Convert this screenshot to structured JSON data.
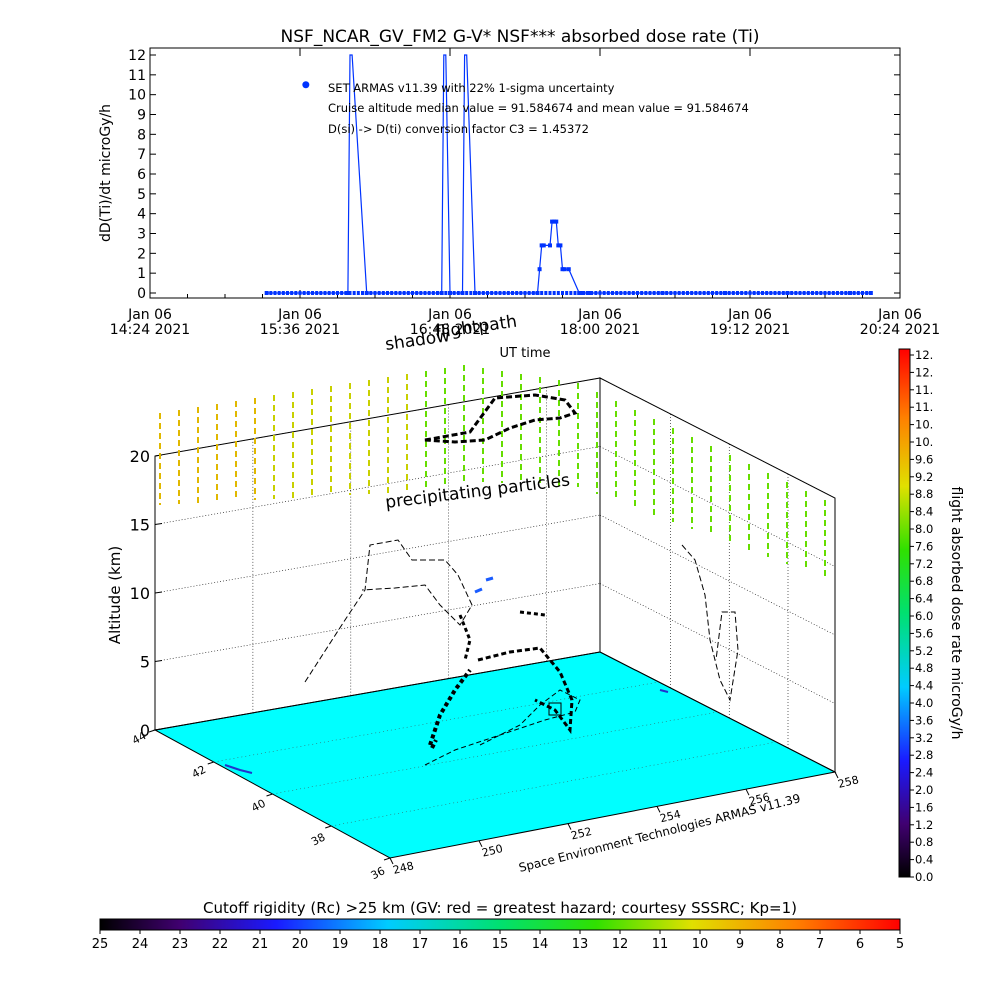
{
  "top_chart": {
    "title": "NSF_NCAR_GV_FM2 G-V* NSF*** absorbed dose rate (Ti)",
    "ylabel": "dD(Ti)/dt microGy/h",
    "xlabel": "UT time",
    "annotations": [
      "SET ARMAS v11.39 with 22% 1-sigma uncertainty",
      "Cruise altitude median value = 91.584674 and mean value = 91.584674",
      "D(si) -> D(ti) conversion factor C3 = 1.45372"
    ]
  },
  "map3d": {
    "zlabel": "Altitude (km)",
    "z_ticks": [
      "0",
      "5",
      "10",
      "15",
      "20"
    ],
    "lat_ticks": [
      "44",
      "42",
      "40",
      "38",
      "36"
    ],
    "lon_ticks": [
      "248",
      "250",
      "252",
      "254",
      "256",
      "258"
    ],
    "label_shadow": "shadow",
    "label_flightpath": "flightpath",
    "label_precip": "precipitating particles",
    "credit": "Space Environment Technologies ARMAS v11.39",
    "floor_color": "#00ffff"
  },
  "right_colorbar": {
    "label": "flight absorbed dose rate microGy/h",
    "ticks": [
      "0.0",
      "0.4",
      "0.8",
      "1.2",
      "1.6",
      "2.0",
      "2.4",
      "2.8",
      "3.2",
      "3.6",
      "4.0",
      "4.4",
      "4.8",
      "5.2",
      "5.6",
      "6.0",
      "6.4",
      "6.8",
      "7.2",
      "7.6",
      "8.0",
      "8.4",
      "8.8",
      "9.2",
      "9.6",
      "10.",
      "10.",
      "11.",
      "11.",
      "12.",
      "12."
    ]
  },
  "bottom_colorbar": {
    "title": "Cutoff rigidity (Rc) >25 km (GV: red = greatest hazard; courtesy SSSRC; Kp=1)",
    "ticks": [
      "25",
      "24",
      "23",
      "22",
      "21",
      "20",
      "19",
      "18",
      "17",
      "16",
      "15",
      "14",
      "13",
      "12",
      "11",
      "10",
      "9",
      "8",
      "7",
      "6",
      "5"
    ]
  },
  "chart_data": {
    "type": "line",
    "title": "NSF_NCAR_GV_FM2 G-V* NSF*** absorbed dose rate (Ti)",
    "xlabel": "UT time",
    "ylabel": "dD(Ti)/dt microGy/h",
    "ylim": [
      0,
      12
    ],
    "xlim": [
      "Jan 06 2021 14:24",
      "Jan 06 2021 20:24"
    ],
    "x_ticks": [
      {
        "date": "Jan 06",
        "time": "14:24 2021"
      },
      {
        "date": "Jan 06",
        "time": "15:36 2021"
      },
      {
        "date": "Jan 06",
        "time": "16:48 2021"
      },
      {
        "date": "Jan 06",
        "time": "18:00 2021"
      },
      {
        "date": "Jan 06",
        "time": "19:12 2021"
      },
      {
        "date": "Jan 06",
        "time": "20:24 2021"
      }
    ],
    "y_ticks": [
      0,
      1,
      2,
      3,
      4,
      5,
      6,
      7,
      8,
      9,
      10,
      11,
      12
    ],
    "series": [
      {
        "color": "#0033ff",
        "x": [
          "15:20",
          "15:59",
          "16:00",
          "16:01",
          "16:08",
          "16:44",
          "16:45",
          "16:46",
          "16:48",
          "16:54",
          "16:55",
          "16:56",
          "17:00",
          "17:30",
          "17:31",
          "17:32",
          "17:33",
          "17:36",
          "17:37",
          "17:38",
          "17:39",
          "17:40",
          "17:41",
          "17:42",
          "17:43",
          "17:45",
          "17:50",
          "17:51",
          "17:52",
          "17:55",
          "18:30",
          "19:00",
          "19:30",
          "20:00",
          "20:10"
        ],
        "y": [
          0,
          0,
          12,
          12,
          0,
          0,
          12,
          12,
          0,
          0,
          12,
          12,
          0,
          0,
          1.2,
          2.4,
          2.4,
          2.4,
          3.6,
          3.6,
          3.6,
          2.4,
          2.4,
          1.2,
          1.2,
          1.2,
          0,
          0,
          0,
          0,
          0,
          0,
          0,
          0,
          0
        ]
      }
    ],
    "isolated_point": {
      "x": "15:58",
      "y": 10.5
    }
  }
}
